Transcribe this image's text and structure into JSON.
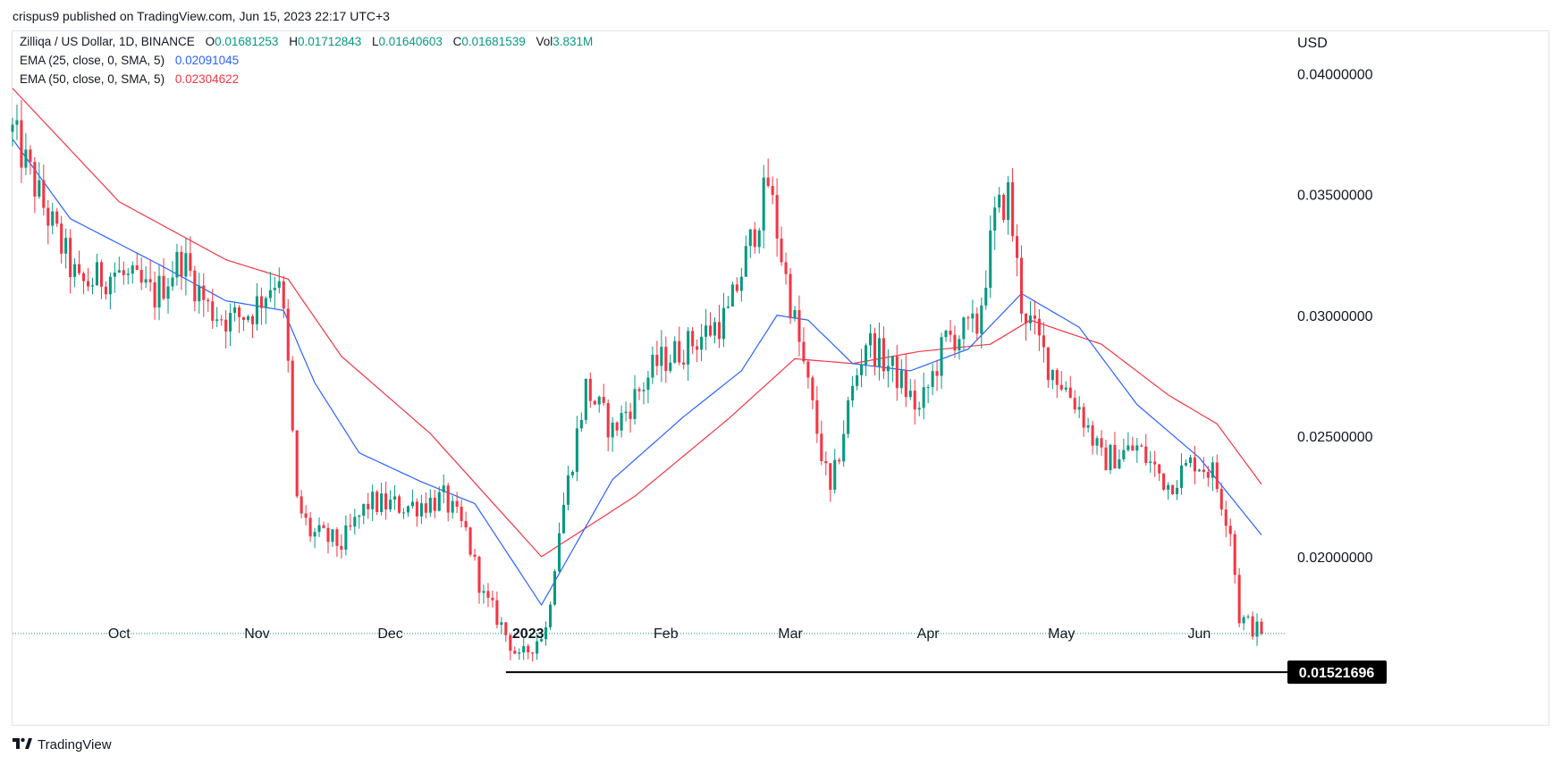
{
  "header": {
    "published": "crispus9 published on TradingView.com, Jun 15, 2023 22:17 UTC+3"
  },
  "legend": {
    "symbol": "Zilliqa / US Dollar, 1D, BINANCE",
    "o_label": "O",
    "o_value": "0.01681253",
    "h_label": "H",
    "h_value": "0.01712843",
    "l_label": "L",
    "l_value": "0.01640603",
    "c_label": "C",
    "c_value": "0.01681539",
    "vol_label": "Vol",
    "vol_value": "3.831M",
    "ema1_label": "EMA (25, close, 0, SMA, 5)",
    "ema1_value": "0.02091045",
    "ema2_label": "EMA (50, close, 0, SMA, 5)",
    "ema2_value": "0.02304622"
  },
  "footer": {
    "brand": "TradingView",
    "logo_icon": "tradingview-logo-icon"
  },
  "colors": {
    "up": "#089981",
    "down": "#f23645",
    "ema25": "#2962ff",
    "ema50": "#f23645",
    "support": "#000000"
  },
  "chart_data": {
    "type": "candlestick",
    "currency": "USD",
    "ylim": [
      0.013,
      0.0418
    ],
    "y_ticks": [
      "0.04000000",
      "0.03500000",
      "0.03000000",
      "0.02500000",
      "0.02000000"
    ],
    "x_ticks": [
      "Oct",
      "Nov",
      "Dec",
      "2023",
      "Feb",
      "Mar",
      "Apr",
      "May",
      "Jun"
    ],
    "x_tick_dates": [
      "2022-10-01",
      "2022-11-01",
      "2022-12-01",
      "2023-01-01",
      "2023-02-01",
      "2023-03-01",
      "2023-04-01",
      "2023-05-01",
      "2023-06-01"
    ],
    "date_range": [
      "2022-09-07",
      "2023-06-15"
    ],
    "support_level": {
      "value": 0.01521696,
      "label": "0.01521696",
      "from_date": "2022-12-27"
    },
    "last_close": 0.01681539,
    "ohlc_keypoints": [
      [
        "2022-09-07",
        0.0376
      ],
      [
        "2022-09-14",
        0.0345
      ],
      [
        "2022-09-22",
        0.0312
      ],
      [
        "2022-09-30",
        0.0318
      ],
      [
        "2022-10-09",
        0.0308
      ],
      [
        "2022-10-15",
        0.0324
      ],
      [
        "2022-10-21",
        0.0303
      ],
      [
        "2022-10-26",
        0.0298
      ],
      [
        "2022-10-31",
        0.0302
      ],
      [
        "2022-11-06",
        0.0318
      ],
      [
        "2022-11-08",
        0.0278
      ],
      [
        "2022-11-10",
        0.0222
      ],
      [
        "2022-11-13",
        0.021
      ],
      [
        "2022-11-20",
        0.0205
      ],
      [
        "2022-11-26",
        0.0222
      ],
      [
        "2022-12-05",
        0.0221
      ],
      [
        "2022-12-13",
        0.0224
      ],
      [
        "2022-12-18",
        0.021
      ],
      [
        "2022-12-22",
        0.0183
      ],
      [
        "2022-12-25",
        0.0175
      ],
      [
        "2022-12-30",
        0.0157
      ],
      [
        "2023-01-05",
        0.017
      ],
      [
        "2023-01-08",
        0.0212
      ],
      [
        "2023-01-14",
        0.027
      ],
      [
        "2023-01-20",
        0.0252
      ],
      [
        "2023-01-30",
        0.028
      ],
      [
        "2023-02-08",
        0.029
      ],
      [
        "2023-02-15",
        0.03
      ],
      [
        "2023-02-20",
        0.033
      ],
      [
        "2023-02-24",
        0.0355
      ],
      [
        "2023-02-28",
        0.0315
      ],
      [
        "2023-03-05",
        0.027
      ],
      [
        "2023-03-10",
        0.0225
      ],
      [
        "2023-03-14",
        0.0262
      ],
      [
        "2023-03-18",
        0.029
      ],
      [
        "2023-03-25",
        0.0275
      ],
      [
        "2023-03-30",
        0.026
      ],
      [
        "2023-04-05",
        0.029
      ],
      [
        "2023-04-12",
        0.0295
      ],
      [
        "2023-04-16",
        0.034
      ],
      [
        "2023-04-19",
        0.035
      ],
      [
        "2023-04-22",
        0.0305
      ],
      [
        "2023-04-28",
        0.028
      ],
      [
        "2023-05-05",
        0.0262
      ],
      [
        "2023-05-10",
        0.024
      ],
      [
        "2023-05-18",
        0.0245
      ],
      [
        "2023-05-25",
        0.023
      ],
      [
        "2023-05-31",
        0.024
      ],
      [
        "2023-06-04",
        0.0235
      ],
      [
        "2023-06-08",
        0.0212
      ],
      [
        "2023-06-10",
        0.0175
      ],
      [
        "2023-06-15",
        0.0168
      ]
    ],
    "ema25_keypoints": [
      [
        "2022-09-07",
        0.0373
      ],
      [
        "2022-09-20",
        0.034
      ],
      [
        "2022-10-10",
        0.0321
      ],
      [
        "2022-10-25",
        0.0306
      ],
      [
        "2022-11-07",
        0.0302
      ],
      [
        "2022-11-14",
        0.0272
      ],
      [
        "2022-11-24",
        0.0243
      ],
      [
        "2022-12-08",
        0.0231
      ],
      [
        "2022-12-20",
        0.0222
      ],
      [
        "2023-01-04",
        0.018
      ],
      [
        "2023-01-20",
        0.0232
      ],
      [
        "2023-02-05",
        0.0258
      ],
      [
        "2023-02-18",
        0.0277
      ],
      [
        "2023-02-26",
        0.03
      ],
      [
        "2023-03-05",
        0.0298
      ],
      [
        "2023-03-15",
        0.028
      ],
      [
        "2023-03-28",
        0.0277
      ],
      [
        "2023-04-10",
        0.0286
      ],
      [
        "2023-04-22",
        0.0309
      ],
      [
        "2023-05-05",
        0.0295
      ],
      [
        "2023-05-18",
        0.0263
      ],
      [
        "2023-06-01",
        0.0241
      ],
      [
        "2023-06-15",
        0.0209
      ]
    ],
    "ema50_keypoints": [
      [
        "2022-09-07",
        0.0394
      ],
      [
        "2022-10-01",
        0.0347
      ],
      [
        "2022-10-25",
        0.0323
      ],
      [
        "2022-11-08",
        0.0315
      ],
      [
        "2022-11-20",
        0.0283
      ],
      [
        "2022-12-10",
        0.0251
      ],
      [
        "2023-01-04",
        0.02
      ],
      [
        "2023-01-25",
        0.0225
      ],
      [
        "2023-02-15",
        0.0257
      ],
      [
        "2023-03-02",
        0.0282
      ],
      [
        "2023-03-15",
        0.028
      ],
      [
        "2023-03-30",
        0.0285
      ],
      [
        "2023-04-15",
        0.0288
      ],
      [
        "2023-04-24",
        0.0298
      ],
      [
        "2023-05-10",
        0.0288
      ],
      [
        "2023-05-25",
        0.0267
      ],
      [
        "2023-06-05",
        0.0255
      ],
      [
        "2023-06-15",
        0.023
      ]
    ]
  }
}
